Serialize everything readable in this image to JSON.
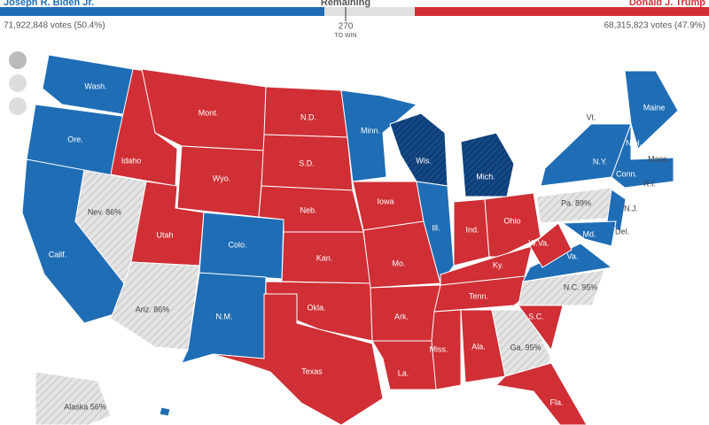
{
  "header": {
    "left": {
      "name": "Joseph R. Biden Jr.",
      "votes": "71,922,848 votes (50.4%)"
    },
    "middle": {
      "label": "Remaining",
      "threshold": "270",
      "threshold_note": "TO WIN"
    },
    "right": {
      "name": "Donald J. Trump",
      "votes": "68,315,823 votes (47.9%)"
    }
  },
  "map": {
    "states": [
      "Wash.",
      "Ore.",
      "Calif.",
      "Nev. 86%",
      "Idaho",
      "Mont.",
      "Wyo.",
      "Utah",
      "Ariz. 86%",
      "Colo.",
      "N.M.",
      "N.D.",
      "S.D.",
      "Neb.",
      "Kan.",
      "Okla.",
      "Texas",
      "Minn.",
      "Iowa",
      "Mo.",
      "Ark.",
      "La.",
      "Wis.",
      "Ill.",
      "Mich.",
      "Ind.",
      "Ohio",
      "Ky.",
      "Tenn.",
      "Miss.",
      "Ala.",
      "Ga. 95%",
      "S.C.",
      "N.C. 95%",
      "Va.",
      "W.Va.",
      "Fla.",
      "Pa. 89%",
      "N.Y.",
      "N.J.",
      "Md.",
      "Del.",
      "Maine",
      "Vt.",
      "N.H.",
      "Mass.",
      "Conn.",
      "R.I.",
      "Alaska 56%"
    ]
  }
}
